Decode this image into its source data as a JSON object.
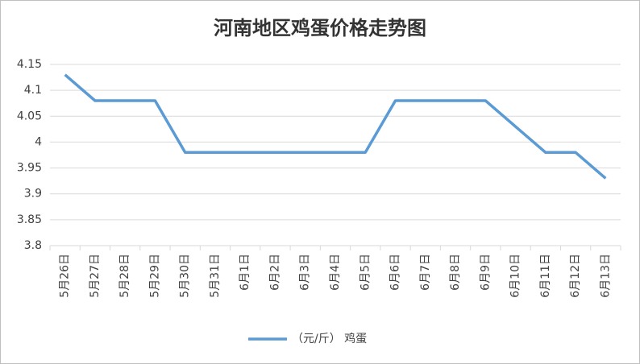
{
  "chart_data": {
    "type": "line",
    "title": "河南地区鸡蛋价格走势图",
    "categories": [
      "5月26日",
      "5月27日",
      "5月28日",
      "5月29日",
      "5月30日",
      "5月31日",
      "6月1日",
      "6月2日",
      "6月3日",
      "6月4日",
      "6月5日",
      "6月6日",
      "6月7日",
      "6月8日",
      "6月9日",
      "6月10日",
      "6月11日",
      "6月12日",
      "6月13日"
    ],
    "series": [
      {
        "name": "（元/斤） 鸡蛋",
        "color": "#5b9bd5",
        "values": [
          4.13,
          4.08,
          4.08,
          4.08,
          3.98,
          3.98,
          3.98,
          3.98,
          3.98,
          3.98,
          3.98,
          4.08,
          4.08,
          4.08,
          4.08,
          4.03,
          3.98,
          3.98,
          3.93
        ]
      }
    ],
    "ylim": [
      3.8,
      4.15
    ],
    "yticks": [
      3.8,
      3.85,
      3.9,
      3.95,
      4,
      4.05,
      4.1,
      4.15
    ],
    "grid": true,
    "legend": "bottom"
  }
}
